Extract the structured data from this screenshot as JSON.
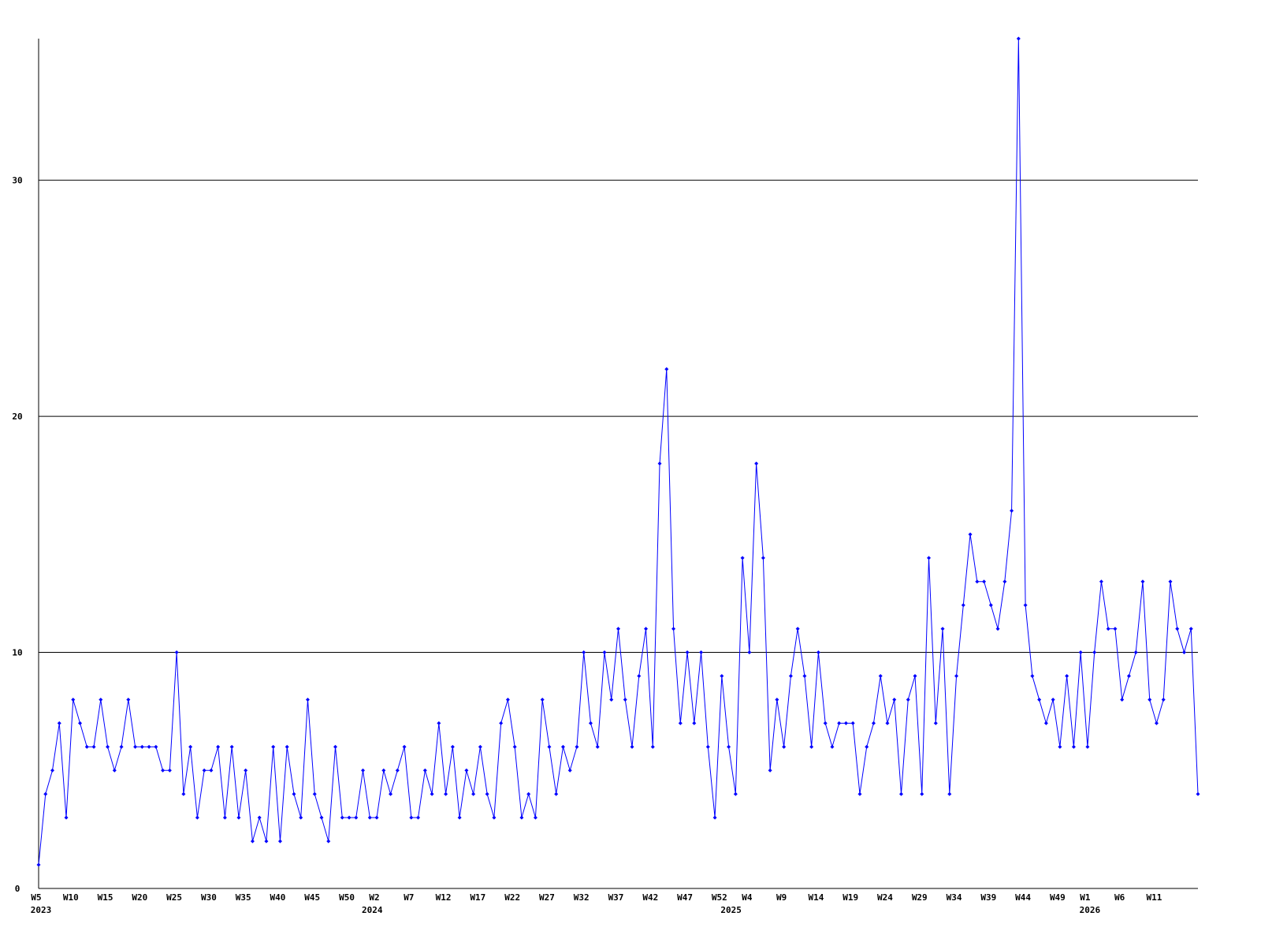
{
  "chart_data": {
    "type": "line",
    "categories": [
      "W5",
      null,
      null,
      null,
      null,
      "W10",
      null,
      null,
      null,
      null,
      "W15",
      null,
      null,
      null,
      null,
      "W20",
      null,
      null,
      null,
      null,
      "W25",
      null,
      null,
      null,
      null,
      "W30",
      null,
      null,
      null,
      null,
      "W35",
      null,
      null,
      null,
      null,
      "W40",
      null,
      null,
      null,
      null,
      "W45",
      null,
      null,
      null,
      null,
      "W50",
      null,
      null,
      null,
      "W2",
      null,
      null,
      null,
      null,
      "W7",
      null,
      null,
      null,
      null,
      "W12",
      null,
      null,
      null,
      null,
      "W17",
      null,
      null,
      null,
      null,
      "W22",
      null,
      null,
      null,
      null,
      "W27",
      null,
      null,
      null,
      null,
      "W32",
      null,
      null,
      null,
      null,
      "W37",
      null,
      null,
      null,
      null,
      "W42",
      null,
      null,
      null,
      null,
      "W47",
      null,
      null,
      null,
      null,
      "W52",
      null,
      null,
      null,
      "W4",
      null,
      null,
      null,
      null,
      "W9",
      null,
      null,
      null,
      null,
      "W14",
      null,
      null,
      null,
      null,
      "W19",
      null,
      null,
      null,
      null,
      "W24",
      null,
      null,
      null,
      null,
      "W29",
      null,
      null,
      null,
      null,
      "W34",
      null,
      null,
      null,
      null,
      "W39",
      null,
      null,
      null,
      null,
      "W44",
      null,
      null,
      null,
      null,
      "W49",
      null,
      null,
      null,
      "W1",
      null,
      null,
      null,
      null,
      "W6",
      null,
      null,
      null,
      null,
      "W11",
      null,
      null,
      null,
      null,
      null,
      null
    ],
    "year_labels": [
      {
        "index": 0,
        "label": "2023"
      },
      {
        "index": 48,
        "label": "2024"
      },
      {
        "index": 100,
        "label": "2025"
      },
      {
        "index": 152,
        "label": "2026"
      }
    ],
    "values": [
      1,
      4,
      5,
      7,
      3,
      8,
      7,
      6,
      6,
      8,
      6,
      5,
      6,
      8,
      6,
      6,
      6,
      6,
      5,
      5,
      10,
      4,
      6,
      3,
      5,
      5,
      6,
      3,
      6,
      3,
      5,
      2,
      3,
      2,
      6,
      2,
      6,
      4,
      3,
      8,
      4,
      3,
      2,
      6,
      3,
      3,
      3,
      5,
      3,
      3,
      5,
      4,
      5,
      6,
      3,
      3,
      5,
      4,
      7,
      4,
      6,
      3,
      5,
      4,
      6,
      4,
      3,
      7,
      8,
      6,
      3,
      4,
      3,
      8,
      6,
      4,
      6,
      5,
      6,
      10,
      7,
      6,
      10,
      8,
      11,
      8,
      6,
      9,
      11,
      6,
      18,
      22,
      11,
      7,
      10,
      7,
      10,
      6,
      3,
      9,
      6,
      4,
      14,
      10,
      18,
      14,
      5,
      8,
      6,
      9,
      11,
      9,
      6,
      10,
      7,
      6,
      7,
      7,
      7,
      4,
      6,
      7,
      9,
      7,
      8,
      4,
      8,
      9,
      4,
      14,
      7,
      11,
      4,
      9,
      12,
      15,
      13,
      13,
      12,
      11,
      13,
      16,
      36,
      12,
      9,
      8,
      7,
      8,
      6,
      9,
      6,
      10,
      6,
      10,
      13,
      11,
      11,
      8,
      9,
      10,
      13,
      8,
      7,
      8,
      13,
      11,
      10,
      11,
      4
    ],
    "color": "#0000ff",
    "ylim": [
      0,
      36
    ],
    "yticks": [
      0,
      10,
      20,
      30
    ],
    "grid": true
  }
}
